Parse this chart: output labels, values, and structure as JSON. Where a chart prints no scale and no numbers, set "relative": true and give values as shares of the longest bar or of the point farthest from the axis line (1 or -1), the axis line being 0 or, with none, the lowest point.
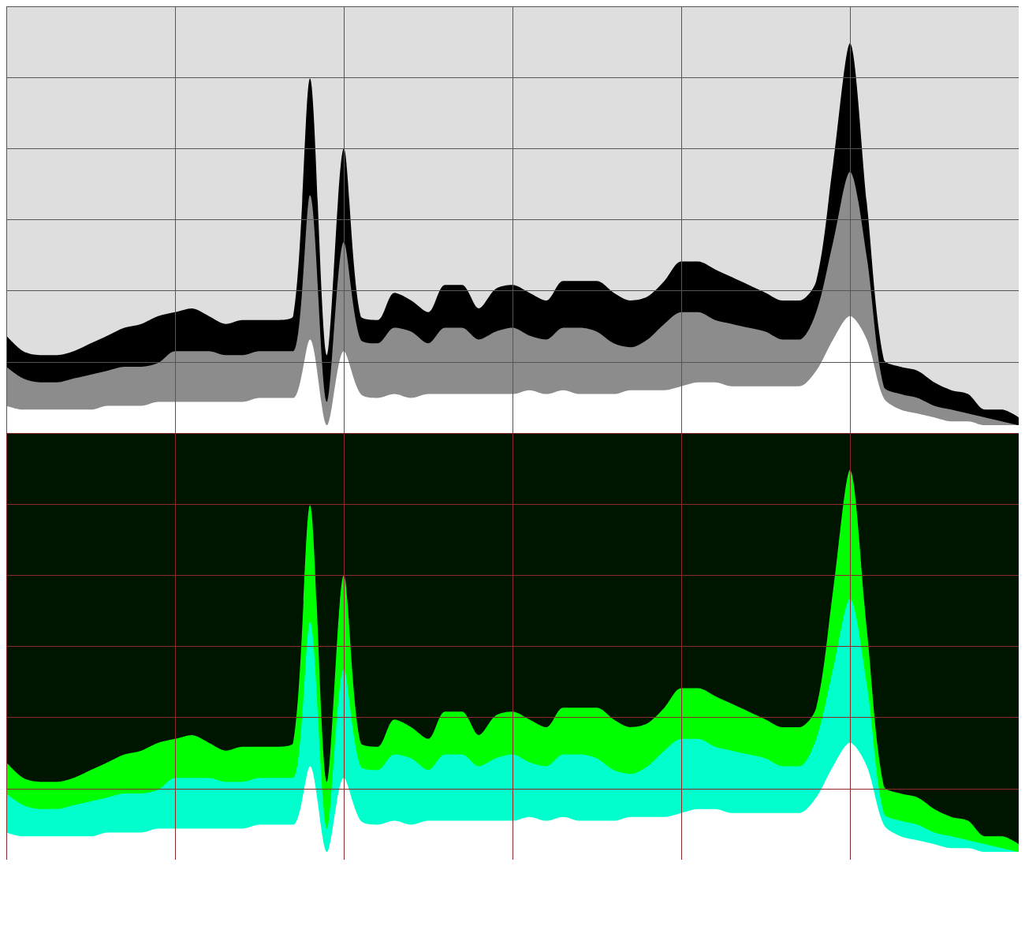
{
  "chart_data": [
    {
      "type": "area",
      "relative": true,
      "grid": true,
      "categories": [
        null,
        null,
        null,
        null,
        null,
        null,
        null,
        null,
        null,
        null,
        null,
        null,
        null,
        null,
        null,
        null,
        null,
        null,
        null,
        null,
        null,
        null,
        null,
        null,
        null,
        null,
        null,
        null,
        null,
        null,
        null,
        null,
        null,
        null,
        null,
        null,
        null,
        null,
        null,
        null,
        null,
        null,
        null,
        null,
        null,
        null,
        null,
        null,
        null,
        null,
        null,
        null,
        null,
        null,
        null,
        null,
        null,
        null,
        null,
        null,
        null
      ],
      "series": [
        {
          "color": "#000000",
          "values": [
            0.25,
            0.21,
            0.2,
            0.2,
            0.21,
            0.23,
            0.25,
            0.27,
            0.28,
            0.3,
            0.31,
            0.32,
            0.3,
            0.28,
            0.29,
            0.29,
            0.29,
            0.3,
            0.91,
            0.2,
            0.73,
            0.3,
            0.29,
            0.36,
            0.34,
            0.31,
            0.38,
            0.38,
            0.32,
            0.37,
            0.38,
            0.36,
            0.34,
            0.39,
            0.39,
            0.39,
            0.36,
            0.34,
            0.35,
            0.39,
            0.44,
            0.44,
            0.42,
            0.4,
            0.38,
            0.36,
            0.34,
            0.34,
            0.39,
            0.69,
            1,
            0.59,
            0.19,
            0.17,
            0.16,
            0.13,
            0.11,
            0.1,
            0.06,
            0.06,
            0.04
          ]
        },
        {
          "color": "#8c8c8c",
          "values": [
            0.17,
            0.14,
            0.13,
            0.13,
            0.14,
            0.15,
            0.16,
            0.17,
            0.17,
            0.18,
            0.21,
            0.21,
            0.21,
            0.2,
            0.2,
            0.21,
            0.21,
            0.21,
            0.61,
            0.08,
            0.49,
            0.24,
            0.23,
            0.27,
            0.26,
            0.23,
            0.27,
            0.27,
            0.24,
            0.26,
            0.27,
            0.25,
            0.24,
            0.27,
            0.27,
            0.26,
            0.23,
            0.22,
            0.24,
            0.28,
            0.31,
            0.31,
            0.29,
            0.28,
            0.27,
            0.26,
            0.24,
            0.24,
            0.31,
            0.49,
            0.67,
            0.45,
            0.12,
            0.1,
            0.09,
            0.07,
            0.06,
            0.05,
            0.04,
            0.03,
            0.02
          ]
        },
        {
          "color": "#ffffff",
          "values": [
            0.07,
            0.06,
            0.06,
            0.06,
            0.06,
            0.06,
            0.07,
            0.07,
            0.07,
            0.08,
            0.08,
            0.08,
            0.08,
            0.08,
            0.08,
            0.09,
            0.09,
            0.09,
            0.24,
            0.02,
            0.21,
            0.1,
            0.09,
            0.1,
            0.09,
            0.1,
            0.1,
            0.1,
            0.1,
            0.1,
            0.1,
            0.11,
            0.1,
            0.11,
            0.1,
            0.1,
            0.1,
            0.11,
            0.11,
            0.11,
            0.12,
            0.13,
            0.13,
            0.12,
            0.12,
            0.12,
            0.12,
            0.12,
            0.16,
            0.24,
            0.3,
            0.24,
            0.09,
            0.06,
            0.05,
            0.04,
            0.03,
            0.03,
            0.02,
            0.02,
            0.02
          ]
        }
      ]
    },
    {
      "type": "area",
      "relative": true,
      "grid": true,
      "categories": [
        null,
        null,
        null,
        null,
        null,
        null,
        null,
        null,
        null,
        null,
        null,
        null,
        null,
        null,
        null,
        null,
        null,
        null,
        null,
        null,
        null,
        null,
        null,
        null,
        null,
        null,
        null,
        null,
        null,
        null,
        null,
        null,
        null,
        null,
        null,
        null,
        null,
        null,
        null,
        null,
        null,
        null,
        null,
        null,
        null,
        null,
        null,
        null,
        null,
        null,
        null,
        null,
        null,
        null,
        null,
        null,
        null,
        null,
        null,
        null,
        null
      ],
      "series": [
        {
          "color": "#00ff00",
          "values": [
            0.25,
            0.21,
            0.2,
            0.2,
            0.21,
            0.23,
            0.25,
            0.27,
            0.28,
            0.3,
            0.31,
            0.32,
            0.3,
            0.28,
            0.29,
            0.29,
            0.29,
            0.3,
            0.91,
            0.2,
            0.73,
            0.3,
            0.29,
            0.36,
            0.34,
            0.31,
            0.38,
            0.38,
            0.32,
            0.37,
            0.38,
            0.36,
            0.34,
            0.39,
            0.39,
            0.39,
            0.36,
            0.34,
            0.35,
            0.39,
            0.44,
            0.44,
            0.42,
            0.4,
            0.38,
            0.36,
            0.34,
            0.34,
            0.39,
            0.69,
            1,
            0.59,
            0.19,
            0.17,
            0.16,
            0.13,
            0.11,
            0.1,
            0.06,
            0.06,
            0.04
          ]
        },
        {
          "color": "#00ffcc",
          "values": [
            0.17,
            0.14,
            0.13,
            0.13,
            0.14,
            0.15,
            0.16,
            0.17,
            0.17,
            0.18,
            0.21,
            0.21,
            0.21,
            0.2,
            0.2,
            0.21,
            0.21,
            0.21,
            0.61,
            0.08,
            0.49,
            0.24,
            0.23,
            0.27,
            0.26,
            0.23,
            0.27,
            0.27,
            0.24,
            0.26,
            0.27,
            0.25,
            0.24,
            0.27,
            0.27,
            0.26,
            0.23,
            0.22,
            0.24,
            0.28,
            0.31,
            0.31,
            0.29,
            0.28,
            0.27,
            0.26,
            0.24,
            0.24,
            0.31,
            0.49,
            0.67,
            0.45,
            0.12,
            0.1,
            0.09,
            0.07,
            0.06,
            0.05,
            0.04,
            0.03,
            0.02
          ]
        },
        {
          "color": "#ffffff",
          "values": [
            0.07,
            0.06,
            0.06,
            0.06,
            0.06,
            0.06,
            0.07,
            0.07,
            0.07,
            0.08,
            0.08,
            0.08,
            0.08,
            0.08,
            0.08,
            0.09,
            0.09,
            0.09,
            0.24,
            0.02,
            0.21,
            0.1,
            0.09,
            0.1,
            0.09,
            0.1,
            0.1,
            0.1,
            0.1,
            0.1,
            0.1,
            0.11,
            0.1,
            0.11,
            0.1,
            0.1,
            0.1,
            0.11,
            0.11,
            0.11,
            0.12,
            0.13,
            0.13,
            0.12,
            0.12,
            0.12,
            0.12,
            0.12,
            0.16,
            0.24,
            0.3,
            0.24,
            0.09,
            0.06,
            0.05,
            0.04,
            0.03,
            0.03,
            0.02,
            0.02,
            0.02
          ]
        }
      ]
    }
  ]
}
